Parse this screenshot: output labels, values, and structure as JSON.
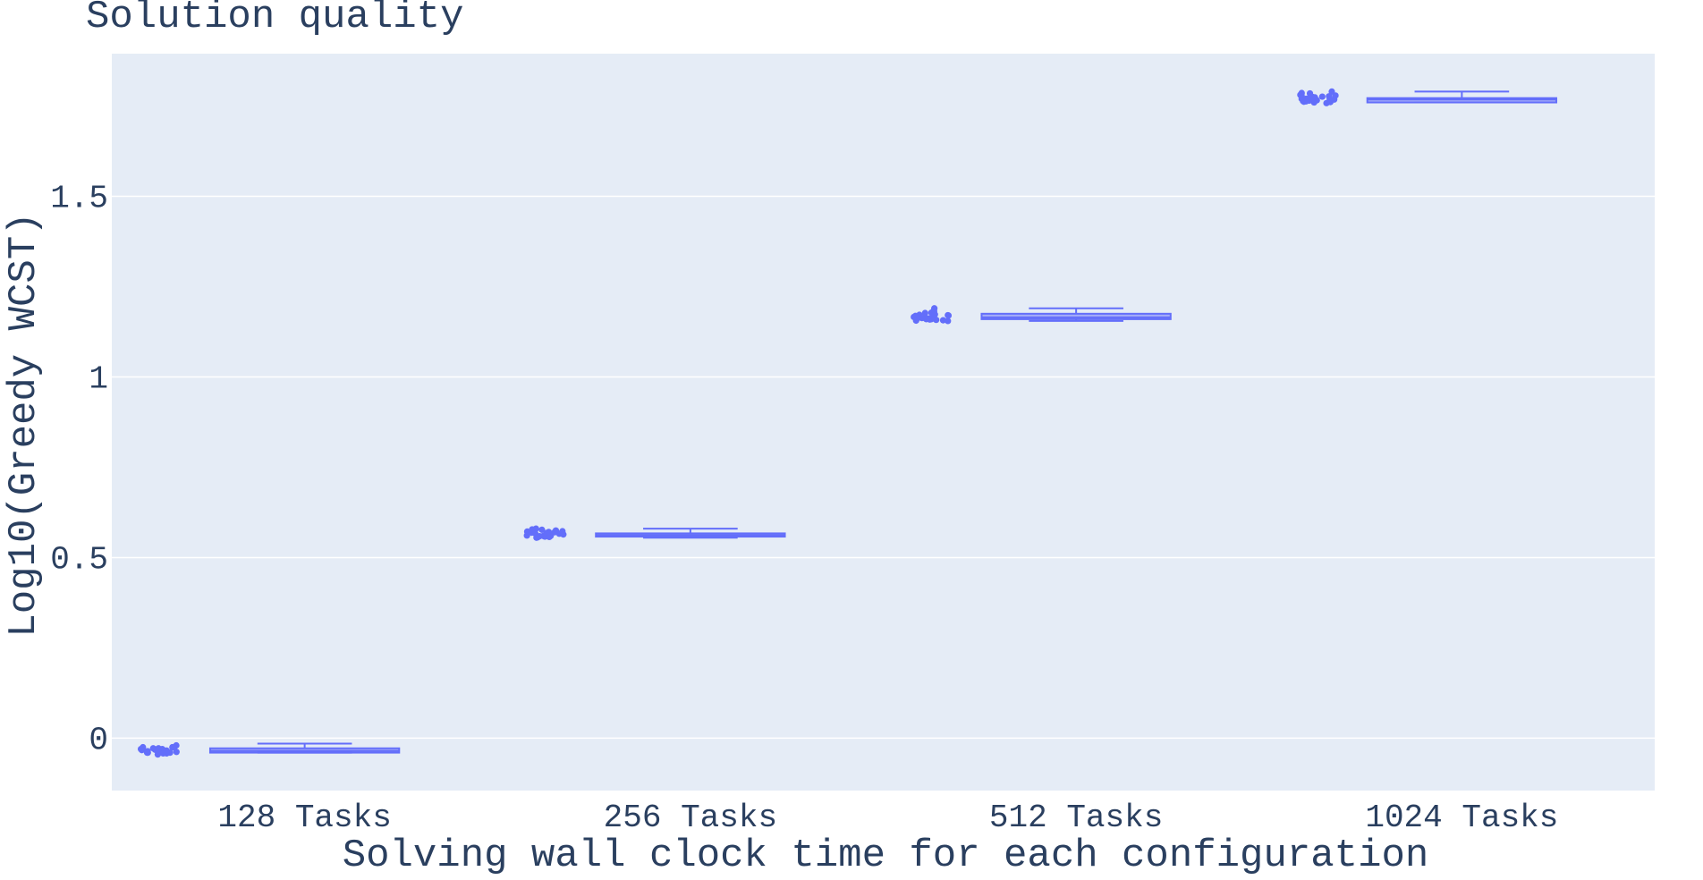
{
  "chart_data": {
    "type": "box",
    "title": "Solution quality",
    "xlabel": "Solving wall clock time for each configuration",
    "ylabel": "Log10(Greedy WCST)",
    "categories": [
      "128 Tasks",
      "256 Tasks",
      "512 Tasks",
      "1024 Tasks"
    ],
    "ylim": [
      -0.145,
      1.895
    ],
    "yticks": [
      0,
      0.5,
      1,
      1.5
    ],
    "ytick_labels": [
      "0",
      "0.5",
      "1",
      "1.5"
    ],
    "grid": true,
    "legend": "none",
    "colors": {
      "plot_bg": "#e5ecf6",
      "grid": "#ffffff",
      "box": "#636efa",
      "text": "#2a3f5f"
    },
    "boxes": [
      {
        "category": "128 Tasks",
        "min": -0.04,
        "q1": -0.04,
        "median": -0.035,
        "q3": -0.028,
        "max": -0.015
      },
      {
        "category": "256 Tasks",
        "min": 0.555,
        "q1": 0.558,
        "median": 0.562,
        "q3": 0.567,
        "max": 0.58
      },
      {
        "category": "512 Tasks",
        "min": 1.155,
        "q1": 1.16,
        "median": 1.165,
        "q3": 1.175,
        "max": 1.19
      },
      {
        "category": "1024 Tasks",
        "min": 1.76,
        "q1": 1.76,
        "median": 1.768,
        "q3": 1.772,
        "max": 1.79
      }
    ],
    "points": [
      {
        "category": "128 Tasks",
        "values": [
          -0.02,
          -0.025,
          -0.03,
          -0.032,
          -0.035,
          -0.038,
          -0.04,
          -0.042,
          -0.028,
          -0.033,
          -0.036,
          -0.025,
          -0.03,
          -0.04,
          -0.045,
          -0.038,
          -0.03,
          -0.035,
          -0.028,
          -0.04,
          -0.032,
          -0.037,
          -0.042,
          -0.026,
          -0.034
        ]
      },
      {
        "category": "256 Tasks",
        "values": [
          0.555,
          0.56,
          0.565,
          0.57,
          0.575,
          0.58,
          0.562,
          0.558,
          0.568,
          0.572,
          0.557,
          0.563,
          0.577,
          0.566,
          0.559,
          0.571,
          0.575,
          0.561,
          0.556,
          0.569,
          0.578,
          0.564,
          0.56,
          0.573,
          0.567
        ]
      },
      {
        "category": "512 Tasks",
        "values": [
          1.155,
          1.16,
          1.165,
          1.17,
          1.175,
          1.18,
          1.185,
          1.19,
          1.162,
          1.158,
          1.168,
          1.172,
          1.157,
          1.163,
          1.177,
          1.166,
          1.159,
          1.171,
          1.16,
          1.164,
          1.178,
          1.156,
          1.169,
          1.173,
          1.161
        ]
      },
      {
        "category": "1024 Tasks",
        "values": [
          1.76,
          1.765,
          1.77,
          1.775,
          1.78,
          1.785,
          1.79,
          1.762,
          1.768,
          1.772,
          1.758,
          1.776,
          1.764,
          1.781,
          1.77,
          1.766,
          1.774,
          1.761,
          1.779,
          1.767,
          1.771,
          1.763,
          1.777,
          1.769,
          1.786
        ]
      }
    ]
  }
}
